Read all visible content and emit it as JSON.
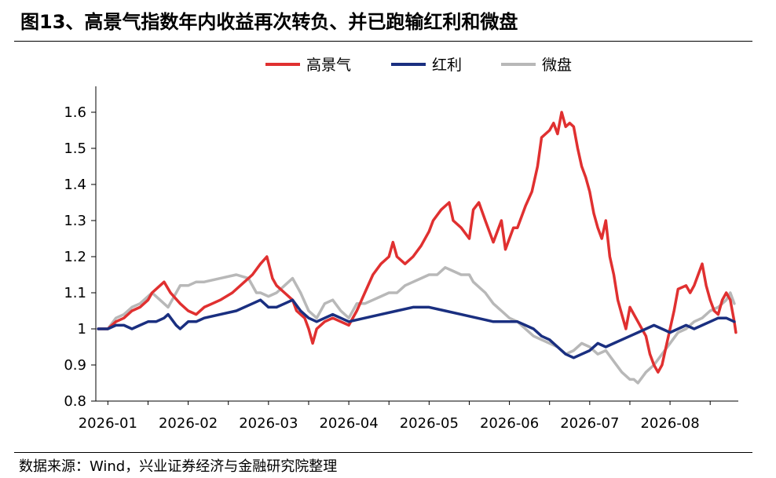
{
  "title": "图13、高景气指数年内收益再次转负、并已跑输红利和微盘",
  "source": "数据来源：Wind，兴业证券经济与金融研究院整理",
  "chart_data": {
    "type": "line",
    "ylim": [
      0.8,
      1.65
    ],
    "yticks": [
      0.8,
      0.9,
      1,
      1.1,
      1.2,
      1.3,
      1.4,
      1.5,
      1.6
    ],
    "ytick_labels": [
      "0.8",
      "0.9",
      "1",
      "1.1",
      "1.2",
      "1.3",
      "1.4",
      "1.5",
      "1.6"
    ],
    "x_ticks": [
      {
        "label": "2026-01",
        "pos": 0
      },
      {
        "label": "2026-02",
        "pos": 1
      },
      {
        "label": "2026-03",
        "pos": 2
      },
      {
        "label": "2026-04",
        "pos": 3
      },
      {
        "label": "2026-05",
        "pos": 4
      },
      {
        "label": "2026-06",
        "pos": 5
      },
      {
        "label": "2026-07",
        "pos": 6
      },
      {
        "label": "2026-08",
        "pos": 7
      }
    ],
    "xlim": [
      -0.15,
      7.85
    ],
    "legend_position": "top-center",
    "grid": false,
    "series": [
      {
        "name": "高景气",
        "color": "#e03030",
        "points": [
          [
            -0.12,
            1.0
          ],
          [
            0.0,
            1.0
          ],
          [
            0.1,
            1.02
          ],
          [
            0.2,
            1.03
          ],
          [
            0.3,
            1.05
          ],
          [
            0.4,
            1.06
          ],
          [
            0.5,
            1.08
          ],
          [
            0.55,
            1.1
          ],
          [
            0.65,
            1.12
          ],
          [
            0.7,
            1.13
          ],
          [
            0.78,
            1.1
          ],
          [
            0.9,
            1.07
          ],
          [
            1.0,
            1.05
          ],
          [
            1.1,
            1.04
          ],
          [
            1.2,
            1.06
          ],
          [
            1.3,
            1.07
          ],
          [
            1.4,
            1.08
          ],
          [
            1.55,
            1.1
          ],
          [
            1.7,
            1.13
          ],
          [
            1.8,
            1.15
          ],
          [
            1.9,
            1.18
          ],
          [
            1.98,
            1.2
          ],
          [
            2.05,
            1.14
          ],
          [
            2.1,
            1.12
          ],
          [
            2.2,
            1.1
          ],
          [
            2.3,
            1.08
          ],
          [
            2.35,
            1.05
          ],
          [
            2.45,
            1.03
          ],
          [
            2.5,
            1.0
          ],
          [
            2.55,
            0.96
          ],
          [
            2.6,
            1.0
          ],
          [
            2.7,
            1.02
          ],
          [
            2.8,
            1.03
          ],
          [
            2.9,
            1.02
          ],
          [
            3.0,
            1.01
          ],
          [
            3.1,
            1.05
          ],
          [
            3.2,
            1.1
          ],
          [
            3.3,
            1.15
          ],
          [
            3.4,
            1.18
          ],
          [
            3.5,
            1.2
          ],
          [
            3.55,
            1.24
          ],
          [
            3.6,
            1.2
          ],
          [
            3.7,
            1.18
          ],
          [
            3.8,
            1.2
          ],
          [
            3.9,
            1.23
          ],
          [
            4.0,
            1.27
          ],
          [
            4.05,
            1.3
          ],
          [
            4.15,
            1.33
          ],
          [
            4.25,
            1.35
          ],
          [
            4.3,
            1.3
          ],
          [
            4.4,
            1.28
          ],
          [
            4.5,
            1.25
          ],
          [
            4.55,
            1.33
          ],
          [
            4.62,
            1.35
          ],
          [
            4.7,
            1.3
          ],
          [
            4.75,
            1.27
          ],
          [
            4.8,
            1.24
          ],
          [
            4.9,
            1.3
          ],
          [
            4.95,
            1.22
          ],
          [
            5.0,
            1.25
          ],
          [
            5.05,
            1.28
          ],
          [
            5.1,
            1.28
          ],
          [
            5.2,
            1.34
          ],
          [
            5.28,
            1.38
          ],
          [
            5.35,
            1.45
          ],
          [
            5.4,
            1.53
          ],
          [
            5.5,
            1.55
          ],
          [
            5.55,
            1.57
          ],
          [
            5.6,
            1.54
          ],
          [
            5.65,
            1.6
          ],
          [
            5.7,
            1.56
          ],
          [
            5.75,
            1.57
          ],
          [
            5.8,
            1.56
          ],
          [
            5.85,
            1.5
          ],
          [
            5.9,
            1.45
          ],
          [
            5.95,
            1.42
          ],
          [
            6.0,
            1.38
          ],
          [
            6.05,
            1.32
          ],
          [
            6.1,
            1.28
          ],
          [
            6.15,
            1.25
          ],
          [
            6.2,
            1.3
          ],
          [
            6.25,
            1.2
          ],
          [
            6.3,
            1.15
          ],
          [
            6.35,
            1.08
          ],
          [
            6.4,
            1.04
          ],
          [
            6.45,
            1.0
          ],
          [
            6.5,
            1.06
          ],
          [
            6.55,
            1.04
          ],
          [
            6.6,
            1.02
          ],
          [
            6.65,
            1.0
          ],
          [
            6.7,
            0.98
          ],
          [
            6.75,
            0.93
          ],
          [
            6.8,
            0.9
          ],
          [
            6.85,
            0.88
          ],
          [
            6.9,
            0.9
          ],
          [
            6.95,
            0.95
          ],
          [
            7.0,
            1.0
          ],
          [
            7.05,
            1.05
          ],
          [
            7.1,
            1.11
          ],
          [
            7.2,
            1.12
          ],
          [
            7.25,
            1.1
          ],
          [
            7.3,
            1.12
          ],
          [
            7.35,
            1.15
          ],
          [
            7.4,
            1.18
          ],
          [
            7.45,
            1.12
          ],
          [
            7.5,
            1.08
          ],
          [
            7.55,
            1.05
          ],
          [
            7.6,
            1.04
          ],
          [
            7.65,
            1.08
          ],
          [
            7.7,
            1.1
          ],
          [
            7.75,
            1.08
          ],
          [
            7.8,
            1.02
          ],
          [
            7.82,
            0.99
          ]
        ]
      },
      {
        "name": "红利",
        "color": "#1a2f80",
        "points": [
          [
            -0.12,
            1.0
          ],
          [
            0.0,
            1.0
          ],
          [
            0.1,
            1.01
          ],
          [
            0.2,
            1.01
          ],
          [
            0.3,
            1.0
          ],
          [
            0.4,
            1.01
          ],
          [
            0.5,
            1.02
          ],
          [
            0.6,
            1.02
          ],
          [
            0.7,
            1.03
          ],
          [
            0.75,
            1.04
          ],
          [
            0.85,
            1.01
          ],
          [
            0.9,
            1.0
          ],
          [
            1.0,
            1.02
          ],
          [
            1.1,
            1.02
          ],
          [
            1.2,
            1.03
          ],
          [
            1.4,
            1.04
          ],
          [
            1.6,
            1.05
          ],
          [
            1.8,
            1.07
          ],
          [
            1.9,
            1.08
          ],
          [
            2.0,
            1.06
          ],
          [
            2.1,
            1.06
          ],
          [
            2.2,
            1.07
          ],
          [
            2.3,
            1.08
          ],
          [
            2.4,
            1.05
          ],
          [
            2.5,
            1.03
          ],
          [
            2.6,
            1.02
          ],
          [
            2.7,
            1.03
          ],
          [
            2.8,
            1.04
          ],
          [
            2.9,
            1.03
          ],
          [
            3.0,
            1.02
          ],
          [
            3.2,
            1.03
          ],
          [
            3.4,
            1.04
          ],
          [
            3.6,
            1.05
          ],
          [
            3.8,
            1.06
          ],
          [
            4.0,
            1.06
          ],
          [
            4.2,
            1.05
          ],
          [
            4.4,
            1.04
          ],
          [
            4.6,
            1.03
          ],
          [
            4.8,
            1.02
          ],
          [
            5.0,
            1.02
          ],
          [
            5.1,
            1.02
          ],
          [
            5.2,
            1.01
          ],
          [
            5.3,
            1.0
          ],
          [
            5.4,
            0.98
          ],
          [
            5.5,
            0.97
          ],
          [
            5.6,
            0.95
          ],
          [
            5.7,
            0.93
          ],
          [
            5.8,
            0.92
          ],
          [
            5.9,
            0.93
          ],
          [
            6.0,
            0.94
          ],
          [
            6.1,
            0.96
          ],
          [
            6.2,
            0.95
          ],
          [
            6.3,
            0.96
          ],
          [
            6.4,
            0.97
          ],
          [
            6.5,
            0.98
          ],
          [
            6.6,
            0.99
          ],
          [
            6.7,
            1.0
          ],
          [
            6.8,
            1.01
          ],
          [
            6.9,
            1.0
          ],
          [
            7.0,
            0.99
          ],
          [
            7.1,
            1.0
          ],
          [
            7.2,
            1.01
          ],
          [
            7.3,
            1.0
          ],
          [
            7.4,
            1.01
          ],
          [
            7.5,
            1.02
          ],
          [
            7.6,
            1.03
          ],
          [
            7.7,
            1.03
          ],
          [
            7.8,
            1.02
          ]
        ]
      },
      {
        "name": "微盘",
        "color": "#b8b8b8",
        "points": [
          [
            -0.12,
            1.0
          ],
          [
            0.0,
            1.0
          ],
          [
            0.1,
            1.03
          ],
          [
            0.2,
            1.04
          ],
          [
            0.3,
            1.06
          ],
          [
            0.4,
            1.07
          ],
          [
            0.5,
            1.09
          ],
          [
            0.55,
            1.1
          ],
          [
            0.65,
            1.08
          ],
          [
            0.75,
            1.06
          ],
          [
            0.85,
            1.1
          ],
          [
            0.9,
            1.12
          ],
          [
            1.0,
            1.12
          ],
          [
            1.1,
            1.13
          ],
          [
            1.2,
            1.13
          ],
          [
            1.4,
            1.14
          ],
          [
            1.6,
            1.15
          ],
          [
            1.75,
            1.14
          ],
          [
            1.85,
            1.1
          ],
          [
            1.9,
            1.1
          ],
          [
            2.0,
            1.09
          ],
          [
            2.1,
            1.1
          ],
          [
            2.2,
            1.12
          ],
          [
            2.3,
            1.14
          ],
          [
            2.4,
            1.1
          ],
          [
            2.5,
            1.05
          ],
          [
            2.6,
            1.03
          ],
          [
            2.7,
            1.07
          ],
          [
            2.8,
            1.08
          ],
          [
            2.9,
            1.05
          ],
          [
            3.0,
            1.03
          ],
          [
            3.1,
            1.07
          ],
          [
            3.2,
            1.07
          ],
          [
            3.3,
            1.08
          ],
          [
            3.4,
            1.09
          ],
          [
            3.5,
            1.1
          ],
          [
            3.6,
            1.1
          ],
          [
            3.7,
            1.12
          ],
          [
            3.8,
            1.13
          ],
          [
            3.9,
            1.14
          ],
          [
            4.0,
            1.15
          ],
          [
            4.1,
            1.15
          ],
          [
            4.2,
            1.17
          ],
          [
            4.3,
            1.16
          ],
          [
            4.4,
            1.15
          ],
          [
            4.5,
            1.15
          ],
          [
            4.55,
            1.13
          ],
          [
            4.6,
            1.12
          ],
          [
            4.7,
            1.1
          ],
          [
            4.8,
            1.07
          ],
          [
            4.9,
            1.05
          ],
          [
            5.0,
            1.03
          ],
          [
            5.1,
            1.02
          ],
          [
            5.2,
            1.0
          ],
          [
            5.3,
            0.98
          ],
          [
            5.4,
            0.97
          ],
          [
            5.5,
            0.96
          ],
          [
            5.6,
            0.95
          ],
          [
            5.7,
            0.93
          ],
          [
            5.8,
            0.94
          ],
          [
            5.9,
            0.96
          ],
          [
            6.0,
            0.95
          ],
          [
            6.1,
            0.93
          ],
          [
            6.2,
            0.94
          ],
          [
            6.3,
            0.91
          ],
          [
            6.4,
            0.88
          ],
          [
            6.5,
            0.86
          ],
          [
            6.55,
            0.86
          ],
          [
            6.6,
            0.85
          ],
          [
            6.7,
            0.88
          ],
          [
            6.8,
            0.9
          ],
          [
            6.9,
            0.93
          ],
          [
            7.0,
            0.96
          ],
          [
            7.1,
            0.99
          ],
          [
            7.2,
            1.0
          ],
          [
            7.3,
            1.02
          ],
          [
            7.4,
            1.03
          ],
          [
            7.5,
            1.05
          ],
          [
            7.6,
            1.06
          ],
          [
            7.7,
            1.08
          ],
          [
            7.75,
            1.1
          ],
          [
            7.8,
            1.07
          ]
        ]
      }
    ]
  }
}
